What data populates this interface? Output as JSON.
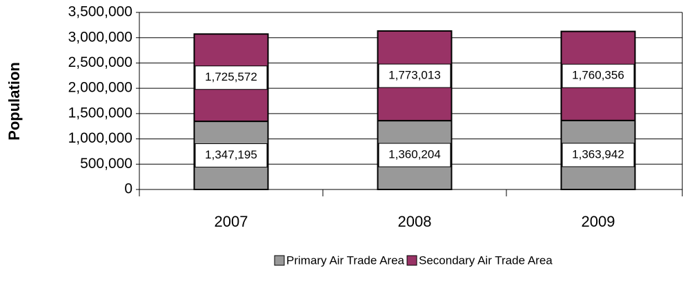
{
  "chart_data": {
    "type": "stacked_bar",
    "y_label": "Population",
    "categories": [
      "2007",
      "2008",
      "2009"
    ],
    "series": [
      {
        "name": "Primary Air Trade Area",
        "color": "#999999",
        "values": [
          1347195,
          1360204,
          1363942
        ],
        "value_labels": [
          "1,347,195",
          "1,360,204",
          "1,363,942"
        ]
      },
      {
        "name": "Secondary Air Trade Area",
        "color": "#993366",
        "values": [
          1725572,
          1773013,
          1760356
        ],
        "value_labels": [
          "1,725,572",
          "1,773,013",
          "1,760,356"
        ]
      }
    ],
    "ylim": [
      0,
      3500000
    ],
    "yticks": [
      0,
      {
        "value": 500000,
        "label": "500,000"
      },
      {
        "value": 1000000,
        "label": "1,000,000"
      },
      {
        "value": 1500000,
        "label": "1,500,000"
      },
      {
        "value": 2000000,
        "label": "2,000,000"
      },
      {
        "value": 2500000,
        "label": "2,500,000"
      },
      {
        "value": 3000000,
        "label": "3,000,000"
      },
      {
        "value": 3500000,
        "label": "3,500,000"
      }
    ],
    "grid": true,
    "legend": "bottom"
  }
}
